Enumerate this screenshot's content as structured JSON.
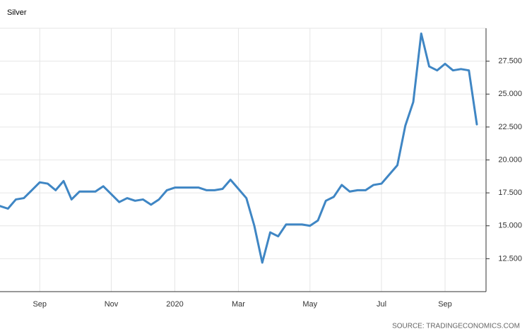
{
  "chart_data": {
    "type": "line",
    "title": "Silver",
    "source": "SOURCE: TRADINGECONOMICS.COM",
    "color": "#3f86c4",
    "grid": true,
    "categories": [
      null,
      null,
      null,
      null,
      null,
      "Sep",
      null,
      null,
      null,
      null,
      null,
      null,
      null,
      null,
      "Nov",
      null,
      null,
      null,
      null,
      null,
      null,
      null,
      "2020",
      null,
      null,
      null,
      null,
      null,
      null,
      null,
      "Mar",
      null,
      null,
      null,
      null,
      null,
      null,
      null,
      null,
      "May",
      null,
      null,
      null,
      null,
      null,
      null,
      null,
      null,
      "Jul",
      null,
      null,
      null,
      null,
      null,
      null,
      null,
      "Sep",
      null,
      null,
      null,
      null
    ],
    "values": [
      16.5,
      16.3,
      17.0,
      17.1,
      17.7,
      18.3,
      18.2,
      17.7,
      18.4,
      17.0,
      17.6,
      17.6,
      17.6,
      18.0,
      17.4,
      16.8,
      17.1,
      16.9,
      17.0,
      16.6,
      17.0,
      17.7,
      17.9,
      17.9,
      17.9,
      17.9,
      17.7,
      17.7,
      17.8,
      18.5,
      17.8,
      17.1,
      15.0,
      12.2,
      14.5,
      14.2,
      15.1,
      15.1,
      15.1,
      15.0,
      15.4,
      16.9,
      17.2,
      18.1,
      17.6,
      17.7,
      17.7,
      18.1,
      18.2,
      18.9,
      19.6,
      22.6,
      24.4,
      29.6,
      27.1,
      26.8,
      27.3,
      26.8,
      26.9,
      26.8,
      22.7
    ],
    "ylim": [
      10,
      30
    ],
    "yticks": [
      {
        "value": 12.5,
        "label": "12.500"
      },
      {
        "value": 15,
        "label": "15.000"
      },
      {
        "value": 17.5,
        "label": "17.500"
      },
      {
        "value": 20,
        "label": "20.000"
      },
      {
        "value": 22.5,
        "label": "22.500"
      },
      {
        "value": 25,
        "label": "25.000"
      },
      {
        "value": 27.5,
        "label": "27.500"
      }
    ]
  }
}
